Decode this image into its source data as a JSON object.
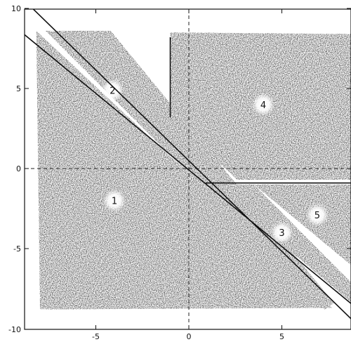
{
  "chart_data": {
    "type": "scatter",
    "xlim": [
      -9.5,
      9
    ],
    "ylim": [
      -10,
      10
    ],
    "x_ticks": [
      -5,
      0,
      5
    ],
    "y_ticks": [
      10,
      5,
      0,
      -5,
      -10
    ],
    "tick_labels_x": [
      "-5",
      "0",
      "5"
    ],
    "tick_labels_y": [
      "10",
      "5",
      "0",
      "-5",
      "-10"
    ],
    "grid": false,
    "reference_lines": {
      "x": 0,
      "y": 0,
      "style": "dashed"
    },
    "regions": [
      {
        "label": "1",
        "center": [
          -4,
          -2
        ],
        "vertices": [
          [
            -8.2,
            8.6
          ],
          [
            -8,
            -8.8
          ],
          [
            7.7,
            -8.7
          ]
        ]
      },
      {
        "label": "2",
        "center": [
          -4.1,
          4.9
        ],
        "vertices": [
          [
            -7.7,
            8.6
          ],
          [
            -4.2,
            8.6
          ],
          [
            7.8,
            -8.4
          ],
          [
            7.3,
            -8.8
          ]
        ]
      },
      {
        "label": "3",
        "center": [
          5,
          -4
        ],
        "vertices": [
          [
            1.2,
            -1
          ],
          [
            3.5,
            -1
          ],
          [
            10,
            -8.6
          ],
          [
            10,
            -9.6
          ]
        ]
      },
      {
        "label": "4",
        "center": [
          4,
          4
        ],
        "vertices": [
          [
            -1,
            8.5
          ],
          [
            8.8,
            8.4
          ],
          [
            8.9,
            -0.7
          ],
          [
            2.6,
            -0.7
          ],
          [
            -1,
            3.2
          ]
        ]
      },
      {
        "label": "5",
        "center": [
          6.9,
          -2.9
        ],
        "vertices": [
          [
            3.5,
            -1
          ],
          [
            9,
            -1
          ],
          [
            9,
            -6.3
          ]
        ]
      }
    ],
    "boundaries": [
      {
        "from": [
          -9.5,
          9
        ],
        "to": [
          9,
          -8.7
        ]
      },
      {
        "from": [
          -8.4,
          10
        ],
        "to": [
          9,
          -9.7
        ]
      },
      {
        "from": [
          -1,
          8.2
        ],
        "to": [
          -1,
          3.2
        ]
      },
      {
        "from": [
          0.9,
          -0.9
        ],
        "to": [
          9,
          -0.9
        ]
      }
    ]
  }
}
